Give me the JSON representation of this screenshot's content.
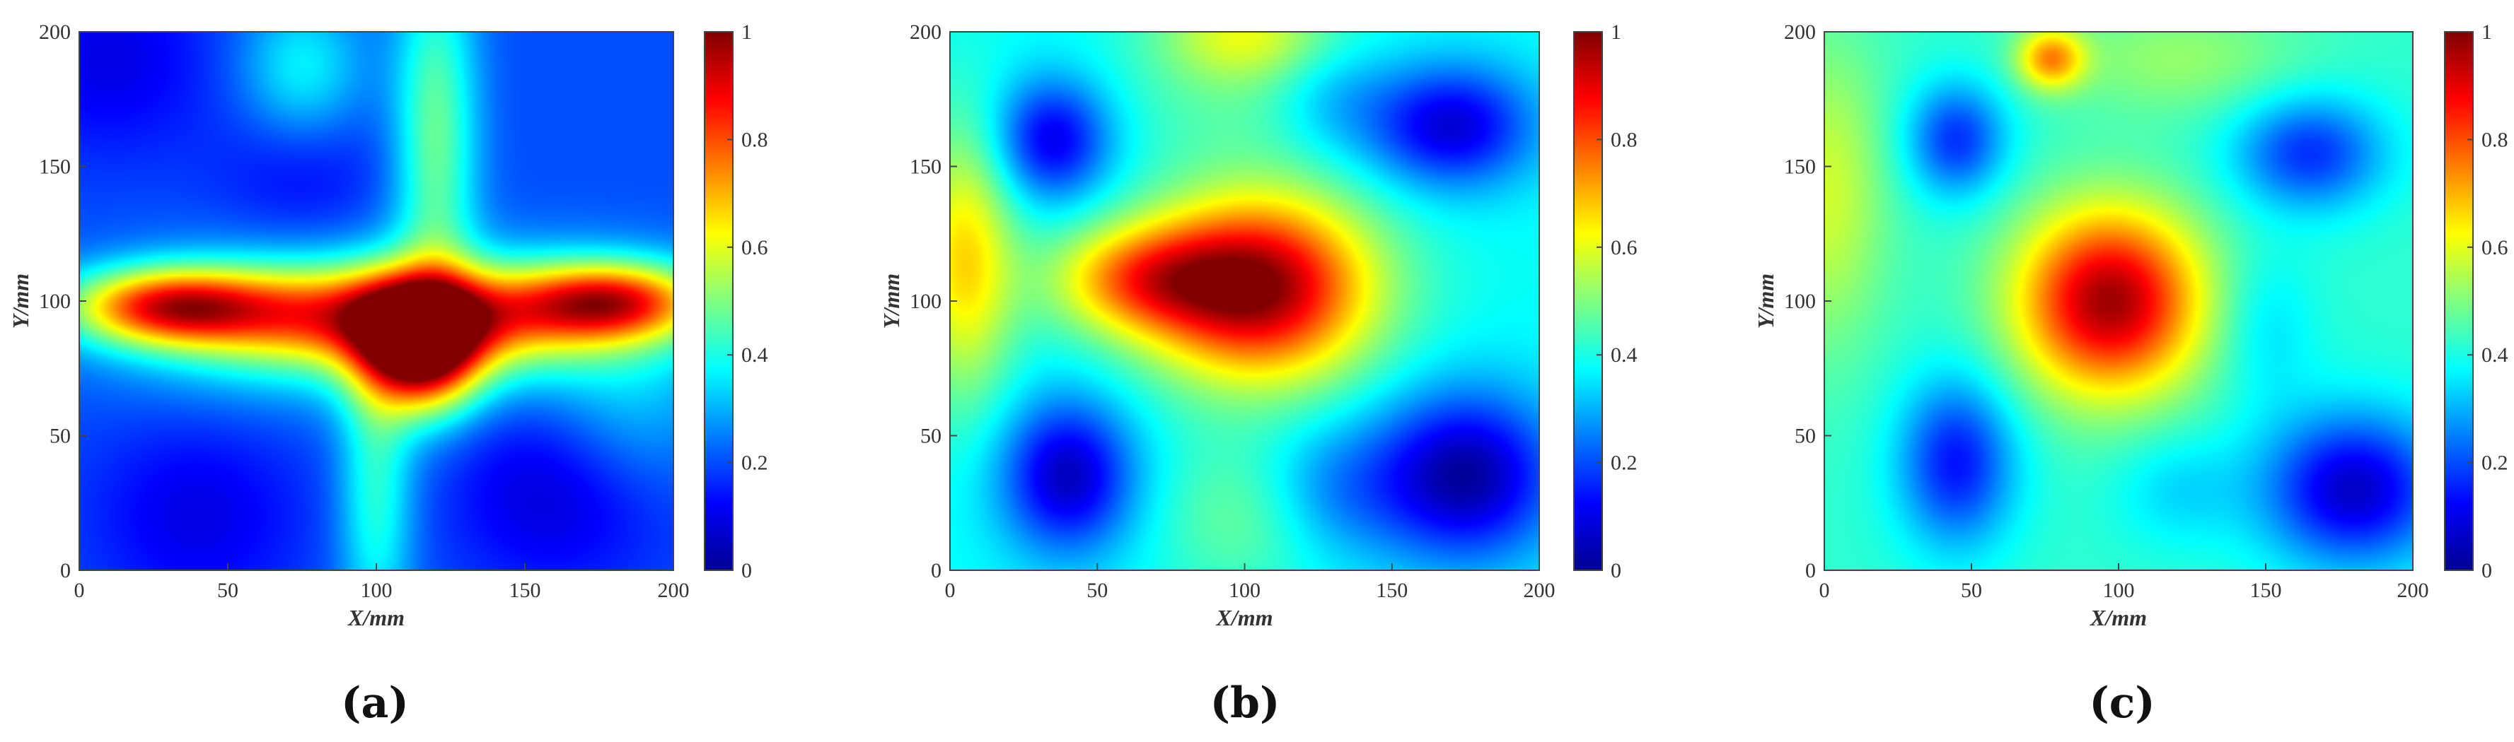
{
  "chart_data": [
    {
      "type": "heatmap",
      "panel_label": "(a)",
      "xlabel": "X/mm",
      "ylabel": "Y/mm",
      "xlim": [
        0,
        200
      ],
      "ylim": [
        0,
        200
      ],
      "xticks": [
        "0",
        "50",
        "100",
        "150",
        "200"
      ],
      "yticks": [
        "0",
        "50",
        "100",
        "150",
        "200"
      ],
      "colorbar": {
        "min": 0,
        "max": 1,
        "ticks": [
          "0",
          "0.2",
          "0.4",
          "0.6",
          "0.8",
          "1"
        ],
        "colormap": "jet"
      },
      "base_value": 0.2,
      "features": [
        {
          "x": 115,
          "y": 82,
          "amp": 0.68,
          "sx": 14,
          "sy": 16
        },
        {
          "x": 108,
          "y": 95,
          "amp": 0.42,
          "sx": 38,
          "sy": 12
        },
        {
          "x": 30,
          "y": 98,
          "amp": 0.56,
          "sx": 24,
          "sy": 10
        },
        {
          "x": 180,
          "y": 100,
          "amp": 0.5,
          "sx": 22,
          "sy": 10
        },
        {
          "x": 70,
          "y": 92,
          "amp": 0.28,
          "sx": 40,
          "sy": 18
        },
        {
          "x": 160,
          "y": 92,
          "amp": 0.25,
          "sx": 40,
          "sy": 18
        },
        {
          "x": 120,
          "y": 160,
          "amp": 0.28,
          "sx": 10,
          "sy": 50
        },
        {
          "x": 100,
          "y": 30,
          "amp": 0.22,
          "sx": 9,
          "sy": 40
        },
        {
          "x": 75,
          "y": 185,
          "amp": 0.18,
          "sx": 15,
          "sy": 20
        },
        {
          "x": 185,
          "y": 55,
          "amp": 0.1,
          "sx": 20,
          "sy": 20
        },
        {
          "x": 10,
          "y": 190,
          "amp": -0.1,
          "sx": 25,
          "sy": 25
        },
        {
          "x": 160,
          "y": 30,
          "amp": -0.12,
          "sx": 25,
          "sy": 25
        },
        {
          "x": 40,
          "y": 20,
          "amp": -0.1,
          "sx": 25,
          "sy": 25
        },
        {
          "x": 75,
          "y": 150,
          "amp": -0.08,
          "sx": 20,
          "sy": 20
        }
      ]
    },
    {
      "type": "heatmap",
      "panel_label": "(b)",
      "xlabel": "X/mm",
      "ylabel": "Y/mm",
      "xlim": [
        0,
        200
      ],
      "ylim": [
        0,
        200
      ],
      "xticks": [
        "0",
        "50",
        "100",
        "150",
        "200"
      ],
      "yticks": [
        "0",
        "50",
        "100",
        "150",
        "200"
      ],
      "colorbar": {
        "min": 0,
        "max": 1,
        "ticks": [
          "0",
          "0.2",
          "0.4",
          "0.6",
          "0.8",
          "1"
        ],
        "colormap": "jet"
      },
      "base_value": 0.38,
      "features": [
        {
          "x": 105,
          "y": 105,
          "amp": 0.6,
          "sx": 27,
          "sy": 24
        },
        {
          "x": 65,
          "y": 108,
          "amp": 0.32,
          "sx": 22,
          "sy": 14
        },
        {
          "x": 5,
          "y": 115,
          "amp": 0.28,
          "sx": 12,
          "sy": 35
        },
        {
          "x": 100,
          "y": 200,
          "amp": 0.18,
          "sx": 20,
          "sy": 12
        },
        {
          "x": 100,
          "y": 20,
          "amp": 0.1,
          "sx": 20,
          "sy": 20
        },
        {
          "x": 100,
          "y": 180,
          "amp": 0.08,
          "sx": 30,
          "sy": 20
        },
        {
          "x": 35,
          "y": 160,
          "amp": -0.28,
          "sx": 14,
          "sy": 16
        },
        {
          "x": 40,
          "y": 35,
          "amp": -0.32,
          "sx": 16,
          "sy": 20
        },
        {
          "x": 170,
          "y": 165,
          "amp": -0.3,
          "sx": 20,
          "sy": 16
        },
        {
          "x": 175,
          "y": 35,
          "amp": -0.35,
          "sx": 22,
          "sy": 22
        },
        {
          "x": 130,
          "y": 175,
          "amp": -0.1,
          "sx": 15,
          "sy": 15
        },
        {
          "x": 130,
          "y": 30,
          "amp": -0.12,
          "sx": 18,
          "sy": 18
        }
      ]
    },
    {
      "type": "heatmap",
      "panel_label": "(c)",
      "xlabel": "X/mm",
      "ylabel": "Y/mm",
      "xlim": [
        0,
        200
      ],
      "ylim": [
        0,
        200
      ],
      "xticks": [
        "0",
        "50",
        "100",
        "150",
        "200"
      ],
      "yticks": [
        "0",
        "50",
        "100",
        "150",
        "200"
      ],
      "colorbar": {
        "min": 0,
        "max": 1,
        "ticks": [
          "0",
          "0.2",
          "0.4",
          "0.6",
          "0.8",
          "1"
        ],
        "colormap": "jet"
      },
      "base_value": 0.42,
      "features": [
        {
          "x": 97,
          "y": 100,
          "amp": 0.55,
          "sx": 22,
          "sy": 24
        },
        {
          "x": 77,
          "y": 190,
          "amp": 0.3,
          "sx": 8,
          "sy": 8
        },
        {
          "x": 0,
          "y": 140,
          "amp": 0.16,
          "sx": 15,
          "sy": 40
        },
        {
          "x": 120,
          "y": 190,
          "amp": 0.1,
          "sx": 30,
          "sy": 15
        },
        {
          "x": 45,
          "y": 160,
          "amp": -0.25,
          "sx": 12,
          "sy": 15
        },
        {
          "x": 45,
          "y": 40,
          "amp": -0.28,
          "sx": 14,
          "sy": 22
        },
        {
          "x": 165,
          "y": 155,
          "amp": -0.25,
          "sx": 18,
          "sy": 15
        },
        {
          "x": 180,
          "y": 30,
          "amp": -0.35,
          "sx": 22,
          "sy": 20
        },
        {
          "x": 120,
          "y": 30,
          "amp": -0.08,
          "sx": 15,
          "sy": 15
        },
        {
          "x": 150,
          "y": 90,
          "amp": -0.08,
          "sx": 12,
          "sy": 20
        }
      ]
    }
  ]
}
